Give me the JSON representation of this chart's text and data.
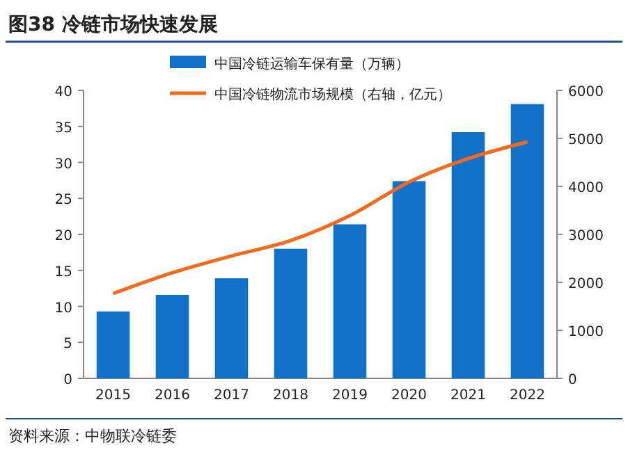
{
  "chart_data": {
    "type": "bar",
    "title": "图38 冷链市场快速发展",
    "categories": [
      "2015",
      "2016",
      "2017",
      "2018",
      "2019",
      "2020",
      "2021",
      "2022"
    ],
    "series": [
      {
        "name": "中国冷链运输车保有量（万辆）",
        "color": "#0f72c8",
        "values": [
          9.3,
          11.6,
          13.9,
          18.0,
          21.4,
          27.4,
          34.2,
          38.1
        ]
      },
      {
        "name": "中国冷链物流市场规模（右轴，亿元）",
        "color": "#f26a1b",
        "type": "line",
        "axis": "y2",
        "values": [
          1770,
          2200,
          2550,
          2870,
          3390,
          4090,
          4580,
          4930
        ]
      }
    ],
    "ylim": [
      0,
      40
    ],
    "yticks": [
      0,
      5,
      10,
      15,
      20,
      25,
      30,
      35,
      40
    ],
    "y2lim": [
      0,
      6000
    ],
    "y2ticks": [
      0,
      1000,
      2000,
      3000,
      4000,
      5000,
      6000
    ],
    "legend": "top right",
    "grid": false,
    "annotations": [
      "资料来源：中物联冷链委"
    ]
  }
}
